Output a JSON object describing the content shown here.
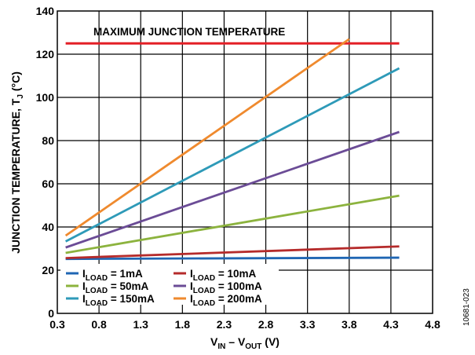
{
  "figure_id": "10681-023",
  "chart_data": {
    "type": "line",
    "xlabel": {
      "main": "V",
      "sub1": "IN",
      "mid": " – V",
      "sub2": "OUT",
      "tail": " (V)"
    },
    "ylabel": {
      "main": "JUNCTION TEMPERATURE, T",
      "sub": "J",
      "tail": " (°C)"
    },
    "xlim": [
      0.3,
      4.8
    ],
    "ylim": [
      0,
      140
    ],
    "xticks": [
      0.3,
      0.8,
      1.3,
      1.8,
      2.3,
      2.8,
      3.3,
      3.8,
      4.3,
      4.8
    ],
    "yticks": [
      0,
      20,
      40,
      60,
      80,
      100,
      120,
      140
    ],
    "grid": true,
    "legend_position": "bottom-left",
    "annotations": [
      {
        "text": "MAXIMUM JUNCTION TEMPERATURE",
        "y": 125,
        "color": "#e31f26"
      }
    ],
    "series": [
      {
        "label_main": "I",
        "label_sub": "LOAD",
        "label_tail": " = 1mA",
        "color": "#1f66b3",
        "x": [
          0.4,
          4.4
        ],
        "y": [
          25.2,
          25.8
        ]
      },
      {
        "label_main": "I",
        "label_sub": "LOAD",
        "label_tail": " = 10mA",
        "color": "#b52b2b",
        "x": [
          0.4,
          4.4
        ],
        "y": [
          25.6,
          31.0
        ]
      },
      {
        "label_main": "I",
        "label_sub": "LOAD",
        "label_tail": " = 50mA",
        "color": "#8cb33e",
        "x": [
          0.4,
          4.4
        ],
        "y": [
          28.0,
          54.5
        ]
      },
      {
        "label_main": "I",
        "label_sub": "LOAD",
        "label_tail": " = 100mA",
        "color": "#6b4c96",
        "x": [
          0.4,
          4.4
        ],
        "y": [
          30.5,
          84.0
        ]
      },
      {
        "label_main": "I",
        "label_sub": "LOAD",
        "label_tail": " = 150mA",
        "color": "#2e9ab8",
        "x": [
          0.4,
          4.4
        ],
        "y": [
          33.3,
          113.5
        ]
      },
      {
        "label_main": "I",
        "label_sub": "LOAD",
        "label_tail": " = 200mA",
        "color": "#ef8a2e",
        "x": [
          0.4,
          3.8
        ],
        "y": [
          36.0,
          127.0
        ]
      }
    ]
  }
}
